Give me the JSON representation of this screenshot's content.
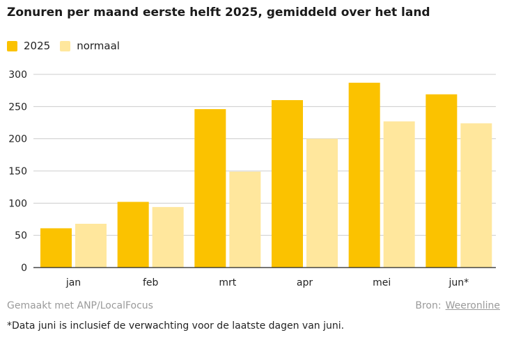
{
  "chart_data": {
    "type": "bar",
    "title": "Zonuren per maand eerste helft 2025, gemiddeld over het land",
    "categories": [
      "jan",
      "feb",
      "mrt",
      "apr",
      "mei",
      "jun*"
    ],
    "series": [
      {
        "name": "2025",
        "color": "#fbc200",
        "values": [
          61,
          102,
          246,
          260,
          287,
          269
        ]
      },
      {
        "name": "normaal",
        "color": "#ffe79d",
        "values": [
          68,
          94,
          149,
          200,
          227,
          224
        ]
      }
    ],
    "yticks": [
      0,
      50,
      100,
      150,
      200,
      250,
      300
    ],
    "ylim": [
      0,
      310
    ],
    "grid": true,
    "legend_position": "top-left"
  },
  "footer": {
    "made_with": "Gemaakt met ANP/LocalFocus",
    "source_label": "Bron:",
    "source_link": "Weeronline",
    "footnote": "*Data juni is inclusief de verwachting voor de laatste dagen van juni."
  }
}
